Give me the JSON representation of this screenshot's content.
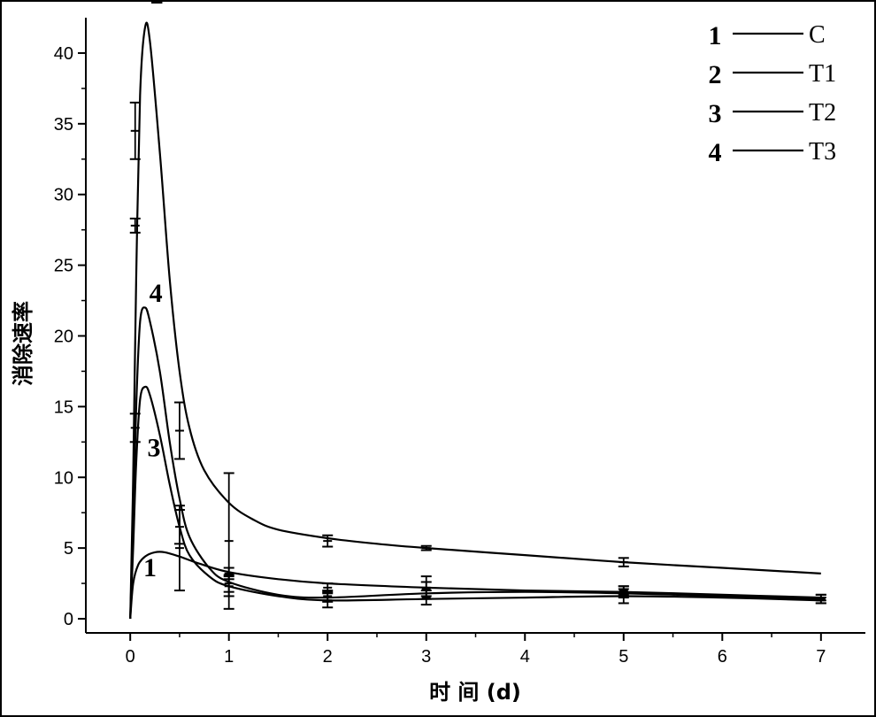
{
  "chart_data": {
    "type": "line",
    "title": "",
    "xlabel": "时 间 (d)",
    "ylabel": "消除速率",
    "xlim": [
      -0.45,
      7.45
    ],
    "ylim": [
      -1,
      42.5
    ],
    "xticks": [
      0,
      1,
      2,
      3,
      4,
      5,
      6,
      7
    ],
    "yticks": [
      0,
      5,
      10,
      15,
      20,
      25,
      30,
      35,
      40
    ],
    "grid": false,
    "legend_position": "top-right",
    "series": [
      {
        "id": "1",
        "name": "C",
        "label_pos": [
          0.2,
          3
        ],
        "points": [
          [
            0,
            0
          ],
          [
            0.03,
            2.5
          ],
          [
            0.08,
            3.8
          ],
          [
            0.15,
            4.4
          ],
          [
            0.25,
            4.7
          ],
          [
            0.35,
            4.7
          ],
          [
            0.5,
            4.4
          ],
          [
            0.7,
            3.9
          ],
          [
            1,
            3.3
          ],
          [
            1.5,
            2.8
          ],
          [
            2,
            2.5
          ],
          [
            3,
            2.2
          ],
          [
            4,
            2.0
          ],
          [
            5,
            1.9
          ],
          [
            6,
            1.7
          ],
          [
            7,
            1.5
          ]
        ],
        "errors": [
          [
            1,
            3.2,
            0.4
          ],
          [
            2,
            2.2,
            0.3
          ],
          [
            3,
            2.1,
            0.5
          ],
          [
            5,
            2.0,
            0.3
          ],
          [
            7,
            1.5,
            0.2
          ]
        ]
      },
      {
        "id": "2",
        "name": "T1",
        "label_pos": [
          0.27,
          43.5
        ],
        "points": [
          [
            0,
            0
          ],
          [
            0.03,
            10
          ],
          [
            0.06,
            24
          ],
          [
            0.1,
            37
          ],
          [
            0.15,
            41.8
          ],
          [
            0.2,
            40.8
          ],
          [
            0.3,
            33
          ],
          [
            0.4,
            24
          ],
          [
            0.5,
            17.5
          ],
          [
            0.6,
            13.5
          ],
          [
            0.75,
            10.5
          ],
          [
            1,
            8.2
          ],
          [
            1.25,
            7.0
          ],
          [
            1.5,
            6.3
          ],
          [
            2,
            5.7
          ],
          [
            2.5,
            5.3
          ],
          [
            3,
            5.0
          ],
          [
            4,
            4.5
          ],
          [
            5,
            4.0
          ],
          [
            6,
            3.6
          ],
          [
            7,
            3.2
          ]
        ],
        "errors": [
          [
            0.05,
            34.5,
            2
          ],
          [
            0.5,
            13.3,
            2
          ],
          [
            1,
            5.5,
            4.8
          ],
          [
            2,
            5.5,
            0.4
          ],
          [
            3,
            5.0,
            0.15
          ],
          [
            5,
            4.0,
            0.3
          ]
        ]
      },
      {
        "id": "3",
        "name": "T2",
        "label_pos": [
          0.24,
          11.5
        ],
        "points": [
          [
            0,
            0
          ],
          [
            0.03,
            5
          ],
          [
            0.06,
            11
          ],
          [
            0.1,
            15.5
          ],
          [
            0.15,
            16.4
          ],
          [
            0.2,
            15.8
          ],
          [
            0.3,
            13
          ],
          [
            0.4,
            9.5
          ],
          [
            0.5,
            6.5
          ],
          [
            0.6,
            4.5
          ],
          [
            0.8,
            3
          ],
          [
            1,
            2.3
          ],
          [
            1.5,
            1.6
          ],
          [
            2,
            1.3
          ],
          [
            3,
            1.4
          ],
          [
            4,
            1.5
          ],
          [
            5,
            1.6
          ],
          [
            6,
            1.5
          ],
          [
            7,
            1.3
          ]
        ],
        "errors": [
          [
            0.05,
            13.5,
            1
          ],
          [
            0.5,
            5,
            3
          ],
          [
            1,
            2.3,
            0.7
          ],
          [
            2,
            1.3,
            0.5
          ],
          [
            3,
            1.5,
            0.5
          ],
          [
            5,
            1.6,
            0.5
          ],
          [
            7,
            1.3,
            0.2
          ]
        ]
      },
      {
        "id": "4",
        "name": "T3",
        "label_pos": [
          0.26,
          22.4
        ],
        "points": [
          [
            0,
            0
          ],
          [
            0.03,
            7
          ],
          [
            0.06,
            15
          ],
          [
            0.1,
            21
          ],
          [
            0.15,
            22
          ],
          [
            0.2,
            21
          ],
          [
            0.3,
            17.5
          ],
          [
            0.4,
            12.5
          ],
          [
            0.5,
            8.5
          ],
          [
            0.6,
            5.8
          ],
          [
            0.8,
            3.6
          ],
          [
            1,
            2.6
          ],
          [
            1.5,
            1.7
          ],
          [
            2,
            1.5
          ],
          [
            3,
            1.8
          ],
          [
            4,
            1.9
          ],
          [
            5,
            1.8
          ],
          [
            6,
            1.6
          ],
          [
            7,
            1.4
          ]
        ],
        "errors": [
          [
            0.05,
            27.8,
            0.5
          ],
          [
            0.5,
            6.5,
            1.2
          ],
          [
            1,
            2.5,
            0.6
          ],
          [
            2,
            1.6,
            0.4
          ],
          [
            3,
            2.2,
            0.8
          ],
          [
            5,
            1.9,
            0.4
          ],
          [
            7,
            1.4,
            0.3
          ]
        ]
      }
    ]
  }
}
